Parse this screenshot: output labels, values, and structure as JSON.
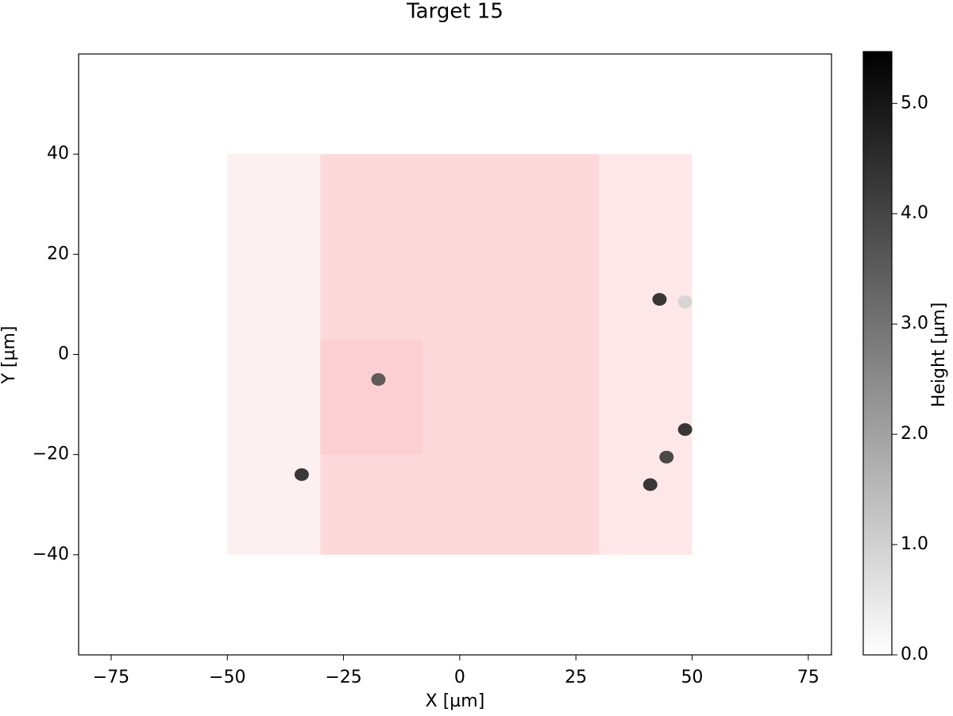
{
  "chart_data": {
    "type": "map",
    "title": "Target 15",
    "x_label": "X [µm]",
    "y_label": "Y [µm]",
    "colorbar_label": "Height [µm]",
    "xlim": [
      -82,
      80
    ],
    "ylim": [
      -60,
      60
    ],
    "xticks": [
      {
        "value": -75,
        "label": "−75"
      },
      {
        "value": -50,
        "label": "−50"
      },
      {
        "value": -25,
        "label": "−25"
      },
      0,
      25,
      50,
      75
    ],
    "yticks": [
      {
        "value": -40,
        "label": "−40"
      },
      {
        "value": -20,
        "label": "−20"
      },
      0,
      20,
      40
    ],
    "clim": [
      0,
      5.47
    ],
    "cticks": [
      {
        "value": 0,
        "label": "0.0"
      },
      {
        "value": 1,
        "label": "1.0"
      },
      {
        "value": 2,
        "label": "2.0"
      },
      {
        "value": 3,
        "label": "3.0"
      },
      {
        "value": 4,
        "label": "4.0"
      },
      {
        "value": 5,
        "label": "5.0"
      }
    ],
    "colormap": [
      "#ffffff",
      "#000000"
    ],
    "regions": [
      {
        "x": [
          -50,
          -30
        ],
        "y": [
          -40,
          40
        ],
        "color": "#fdf0f0"
      },
      {
        "x": [
          -30,
          30
        ],
        "y": [
          -40,
          40
        ],
        "color": "#fdd9db"
      },
      {
        "x": [
          30,
          50
        ],
        "y": [
          -40,
          40
        ],
        "color": "#fde7e8"
      },
      {
        "x": [
          -30,
          -8
        ],
        "y": [
          -20,
          3
        ],
        "color": "#fccfd2"
      }
    ],
    "particles": {
      "x": [
        -34,
        43,
        48.5,
        44.5,
        41,
        -17.5,
        48.5
      ],
      "y": [
        -24,
        11,
        -15,
        -20.5,
        -26,
        -5,
        10.5
      ],
      "heights": [
        5,
        5,
        5,
        4.5,
        5,
        4,
        1
      ]
    }
  }
}
